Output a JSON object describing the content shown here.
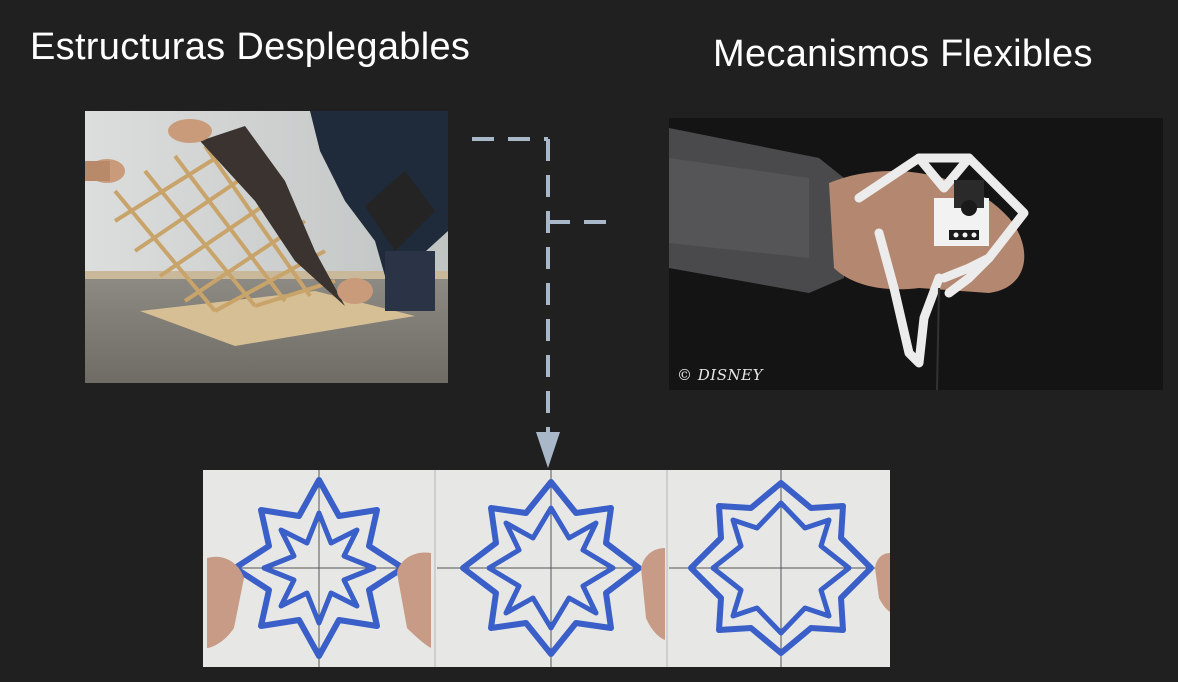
{
  "titles": {
    "left": "Estructuras Desplegables",
    "right": "Mecanismos Flexibles"
  },
  "photos": {
    "left": {
      "subject": "lattice-deployable-structure"
    },
    "right": {
      "subject": "flexible-hand-mechanism",
      "watermark": "© DISNEY"
    },
    "bottom": {
      "subject": "star-pattern-sequence",
      "panels": 3
    }
  },
  "colors": {
    "background": "#202020",
    "title_text": "#ffffff",
    "connector": "#a9b8c8",
    "star_blue": "#3a5fc8"
  }
}
